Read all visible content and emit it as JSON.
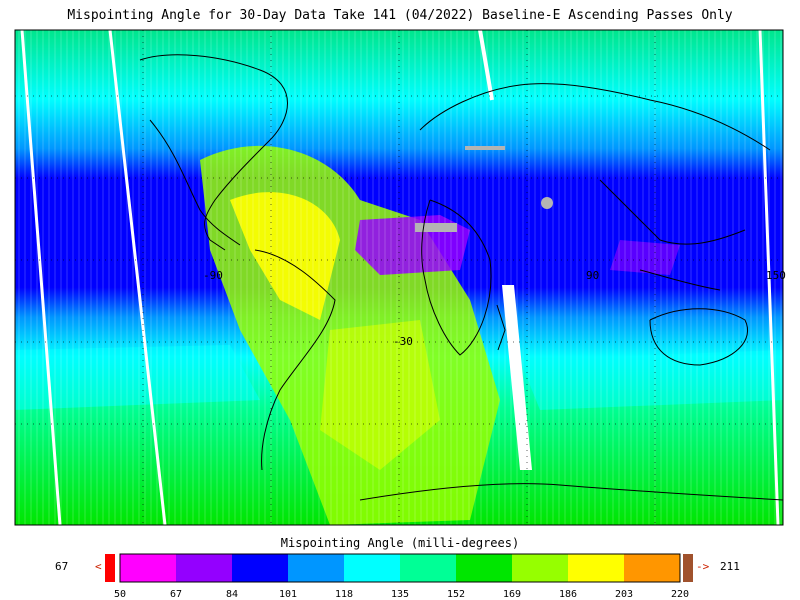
{
  "title": "Mispointing Angle for 30-Day Data Take 141 (04/2022) Baseline-E Ascending Passes Only",
  "map": {
    "lat_labels": [
      "-30"
    ],
    "lon_labels": [
      "-90",
      "-30",
      "90",
      "150"
    ]
  },
  "colorbar": {
    "title": "Mispointing Angle (milli-degrees)",
    "min_value": "67",
    "max_value": "211",
    "under_arrow": "<",
    "over_arrow": "->",
    "ticks": [
      "50",
      "67",
      "84",
      "101",
      "118",
      "135",
      "152",
      "169",
      "186",
      "203",
      "220"
    ],
    "colors": [
      "#ff00ff",
      "#9400ff",
      "#0000ff",
      "#0096ff",
      "#00ffff",
      "#00ff96",
      "#00e600",
      "#96ff00",
      "#ffff00",
      "#ff9600"
    ],
    "under_color": "#ff0000",
    "over_color": "#a0522d"
  }
}
